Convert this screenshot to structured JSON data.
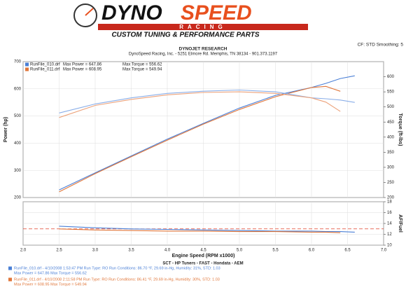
{
  "header": {
    "logo_left": "DYNO",
    "logo_right": "SPEED",
    "logo_sub": "RACING",
    "tagline": "CUSTOM TUNING & PERFORMANCE PARTS",
    "settings": "CF: STD  Smoothing: 5"
  },
  "chart_data": [
    {
      "type": "line",
      "title": "DYNOJET RESEARCH",
      "subtitle": "DynoSpeed Racing, Inc. - 5251 Elmore Rd. Memphis, TN 38134 - 901.373.1197",
      "ylabel": "Power (hp)",
      "y2label": "Torque (ft-lbs)",
      "grid": true,
      "legend": [
        {
          "name": "RunFile_010.drf",
          "power": "Max Power = 647.86",
          "torque": "Max Torque = 556.62",
          "color": "#4a7fd6"
        },
        {
          "name": "RunFile_011.drf",
          "power": "Max Power = 608.95",
          "torque": "Max Torque = 549.94",
          "color": "#e0763a"
        }
      ],
      "xlim": [
        2,
        7
      ],
      "xticks": [
        {
          "value": 2,
          "label": "2.0"
        },
        2.5,
        {
          "value": 3,
          "label": "3.0"
        },
        3.5,
        {
          "value": 4,
          "label": "4.0"
        },
        4.5,
        {
          "value": 5,
          "label": "5.0"
        },
        5.5,
        {
          "value": 6,
          "label": "6.0"
        },
        6.5,
        {
          "value": 7,
          "label": "7.0"
        }
      ],
      "ylim": [
        200,
        700
      ],
      "yticks": [
        200,
        300,
        400,
        500,
        600,
        700
      ],
      "y2lim": [
        200,
        650
      ],
      "y2ticks": [
        200,
        250,
        300,
        350,
        400,
        450,
        500,
        550,
        600
      ],
      "x": [
        2.5,
        3,
        3.5,
        4,
        4.5,
        5,
        5.5,
        6,
        6.2,
        6.4,
        6.6
      ],
      "series": [
        {
          "name": "RunFile_010.drf",
          "color": "#4a7fd6",
          "values": [
            228,
            291,
            353,
            415,
            473,
            529,
            576,
            605,
            620,
            638,
            648
          ]
        },
        {
          "name": "RunFile_011.drf",
          "color": "#e0763a",
          "values": [
            221,
            288,
            350,
            411,
            470,
            524,
            571,
            605,
            609,
            591,
            null
          ]
        },
        {
          "name": "RunFile_010.drf",
          "color": "#8aaee8",
          "axis": "y2",
          "values": [
            480,
            510,
            530,
            545,
            552,
            556,
            550,
            530,
            527,
            523,
            515
          ]
        },
        {
          "name": "RunFile_011.drf",
          "color": "#eca27a",
          "axis": "y2",
          "values": [
            465,
            505,
            525,
            540,
            548,
            550,
            545,
            530,
            516,
            485,
            null
          ]
        }
      ]
    },
    {
      "type": "line",
      "xlabel": "Engine Speed (RPM x1000)",
      "y2label": "AF/Fuel",
      "grid": true,
      "xlim": [
        2,
        7
      ],
      "xticks": [
        {
          "value": 2,
          "label": "2.0"
        },
        2.5,
        {
          "value": 3,
          "label": "3.0"
        },
        3.5,
        {
          "value": 4,
          "label": "4.0"
        },
        4.5,
        {
          "value": 5,
          "label": "5.0"
        },
        5.5,
        {
          "value": 6,
          "label": "6.0"
        },
        6.5,
        {
          "value": 7,
          "label": "7.0"
        }
      ],
      "y2lim": [
        10,
        18
      ],
      "y2ticks": [
        10,
        12,
        14,
        16,
        18
      ],
      "reference": 13,
      "x": [
        2.5,
        3,
        3.5,
        4,
        4.5,
        5,
        5.5,
        6,
        6.2,
        6.4,
        6.6
      ],
      "series": [
        {
          "name": "RunFile_010.drf",
          "color": "#4a7fd6",
          "axis": "y2",
          "values": [
            13.5,
            13.2,
            13,
            12.9,
            12.8,
            12.7,
            12.6,
            12.6,
            12.5,
            12.5,
            12.4
          ]
        },
        {
          "name": "RunFile_011.drf",
          "color": "#e0763a",
          "axis": "y2",
          "values": [
            13,
            12.8,
            12.7,
            12.6,
            12.6,
            12.5,
            12.5,
            12.4,
            12.4,
            12.3,
            null
          ]
        }
      ]
    }
  ],
  "footer": {
    "sponsors": "SCT - HP Tuners - FAST - Hondata - AEM",
    "runs": [
      {
        "info": "RunFile_010.drf - 4/10/2008 1:53:47 PM  Run Type: RO  Run Conditions: 86.70 °F, 29.69 in-Hg, Humidity: 31%, STD: 1.03",
        "max": "Max Power = 647.86  Max Torque = 556.62",
        "color": "#4a7fd6"
      },
      {
        "info": "RunFile_011.drf - 4/10/2008 2:11:58 PM  Run Type: RO  Run Conditions: 86.41 °F, 29.69 in-Hg, Humidity: 30%, STD: 1.03",
        "max": "Max Power = 608.95  Max Torque = 549.94",
        "color": "#e0763a"
      }
    ]
  }
}
